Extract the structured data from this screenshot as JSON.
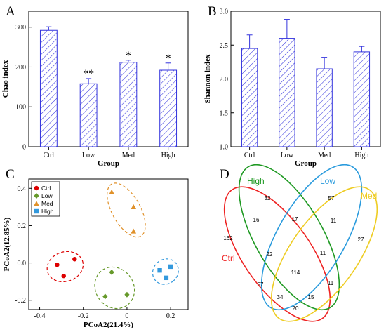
{
  "chart_data": [
    {
      "panel": "A",
      "type": "bar",
      "categories": [
        "Ctrl",
        "Low",
        "Med",
        "High"
      ],
      "values": [
        292,
        158,
        212,
        192
      ],
      "errors": [
        9,
        13,
        5,
        18
      ],
      "significance": [
        "",
        "**",
        "*",
        "*"
      ],
      "xlabel": "Group",
      "ylabel": "Chao index",
      "ylim": [
        0,
        340
      ],
      "yticks": [
        0,
        100,
        200,
        300
      ],
      "bar_color": "#3333dd"
    },
    {
      "panel": "B",
      "type": "bar",
      "categories": [
        "Ctrl",
        "Low",
        "Med",
        "High"
      ],
      "values": [
        2.45,
        2.6,
        2.15,
        2.4
      ],
      "errors": [
        0.2,
        0.28,
        0.17,
        0.08
      ],
      "xlabel": "Group",
      "ylabel": "Shannon index",
      "ylim": [
        1.0,
        3.0
      ],
      "yticks": [
        1.0,
        1.5,
        2.0,
        2.5,
        3.0
      ],
      "bar_color": "#3333dd"
    },
    {
      "panel": "C",
      "type": "scatter",
      "xlabel": "PCoA2(21.4%)",
      "ylabel": "PCoA2(12.85%)",
      "xlim": [
        -0.45,
        0.28
      ],
      "ylim": [
        -0.25,
        0.45
      ],
      "xticks": [
        -0.4,
        -0.2,
        0.0,
        0.2
      ],
      "xtick_labels": [
        "-0.4",
        "-0.2",
        "0",
        "0.2"
      ],
      "yticks": [
        -0.2,
        0.0,
        0.2,
        0.4
      ],
      "ytick_labels": [
        "-0.2",
        "0.0",
        "0.2",
        "0.4"
      ],
      "legend_position": "top-left",
      "series": [
        {
          "name": "Ctrl",
          "color": "#dd0000",
          "marker": "circle",
          "x": [
            -0.32,
            -0.29,
            -0.24
          ],
          "y": [
            -0.01,
            -0.07,
            0.02
          ]
        },
        {
          "name": "Low",
          "color": "#66992a",
          "marker": "diamond",
          "x": [
            -0.07,
            -0.1,
            0.0
          ],
          "y": [
            -0.05,
            -0.18,
            -0.17
          ]
        },
        {
          "name": "Med",
          "color": "#e0912a",
          "marker": "triangle",
          "x": [
            -0.07,
            0.03,
            0.03
          ],
          "y": [
            0.38,
            0.3,
            0.17
          ]
        },
        {
          "name": "High",
          "color": "#3399dd",
          "marker": "square",
          "x": [
            0.15,
            0.2,
            0.18
          ],
          "y": [
            -0.04,
            -0.02,
            -0.08
          ]
        }
      ]
    },
    {
      "panel": "D",
      "type": "venn",
      "sets": [
        {
          "name": "Ctrl",
          "color": "#ee2222"
        },
        {
          "name": "High",
          "color": "#1e9922"
        },
        {
          "name": "Low",
          "color": "#2a9bdd"
        },
        {
          "name": "Med",
          "color": "#eecc22"
        }
      ],
      "regions": [
        {
          "sets": [
            "Ctrl"
          ],
          "value": 162
        },
        {
          "sets": [
            "High"
          ],
          "value": 32
        },
        {
          "sets": [
            "Low"
          ],
          "value": 57
        },
        {
          "sets": [
            "Med"
          ],
          "value": 27
        },
        {
          "sets": [
            "Ctrl",
            "High"
          ],
          "value": 16
        },
        {
          "sets": [
            "High",
            "Low"
          ],
          "value": 17
        },
        {
          "sets": [
            "Low",
            "Med"
          ],
          "value": 11
        },
        {
          "sets": [
            "Ctrl",
            "High",
            "Low"
          ],
          "value": 22
        },
        {
          "sets": [
            "High",
            "Low",
            "Med"
          ],
          "value": 11
        },
        {
          "sets": [
            "Ctrl",
            "High",
            "Low",
            "Med"
          ],
          "value": 114
        },
        {
          "sets": [
            "Ctrl",
            "Low"
          ],
          "value": 57
        },
        {
          "sets": [
            "High",
            "Med"
          ],
          "value": 11
        },
        {
          "sets": [
            "Ctrl",
            "Low",
            "Med"
          ],
          "value": 34
        },
        {
          "sets": [
            "Ctrl",
            "High",
            "Med"
          ],
          "value": 15
        },
        {
          "sets": [
            "Ctrl",
            "Med"
          ],
          "value": 20
        }
      ]
    }
  ]
}
